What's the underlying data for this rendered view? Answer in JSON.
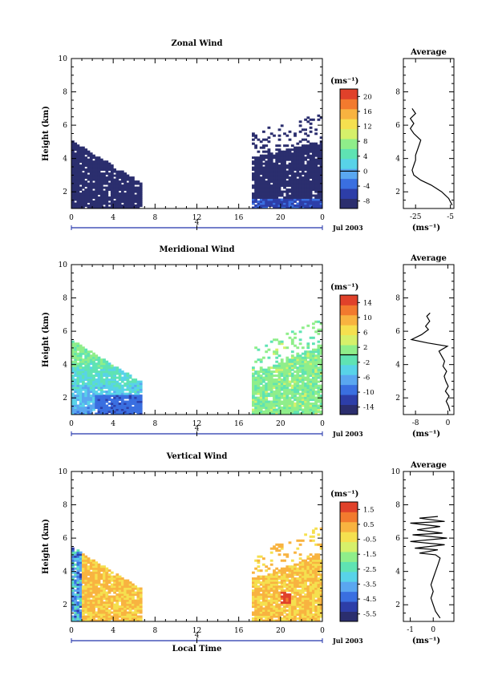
{
  "chart_data": [
    {
      "type": "heatmap",
      "title": "Zonal Wind",
      "ylabel": "Height (km)",
      "xticks": [
        "0",
        "4",
        "8",
        "12",
        "16",
        "20",
        "0"
      ],
      "yticks": [
        "2",
        "4",
        "6",
        "8",
        "10"
      ],
      "xlim": [
        0,
        24
      ],
      "ylim": [
        1,
        10
      ],
      "date_marker": "4",
      "date_label": "Jul 2003",
      "colorbar": {
        "unit": "(ms⁻¹)",
        "ticks": [
          "20",
          "16",
          "12",
          "8",
          "4",
          "0",
          "-4",
          "-8"
        ],
        "vmin": -10,
        "vmax": 22,
        "zero_line": 0
      },
      "scheme": "zonal",
      "average": {
        "title": "Average",
        "xlabel": "(ms⁻¹)",
        "xticks": [
          "-25",
          "-5"
        ],
        "xlim": [
          -32,
          -3
        ],
        "yticks": [
          "2",
          "4",
          "6",
          "8"
        ],
        "ylim": [
          1,
          10
        ],
        "profile": [
          [
            -4,
            1.2
          ],
          [
            -6,
            1.6
          ],
          [
            -10,
            2.0
          ],
          [
            -16,
            2.4
          ],
          [
            -22,
            2.7
          ],
          [
            -26,
            3.0
          ],
          [
            -27,
            3.3
          ],
          [
            -26,
            3.6
          ],
          [
            -25,
            3.9
          ],
          [
            -25,
            4.2
          ],
          [
            -24,
            4.5
          ],
          [
            -23,
            4.8
          ],
          [
            -22,
            5.1
          ],
          [
            -24,
            5.3
          ],
          [
            -26,
            5.5
          ],
          [
            -28,
            5.8
          ],
          [
            -26,
            6.1
          ],
          [
            -28,
            6.4
          ],
          [
            -25,
            6.7
          ],
          [
            -27,
            7.0
          ]
        ]
      }
    },
    {
      "type": "heatmap",
      "title": "Meridional Wind",
      "ylabel": "Height (km)",
      "xticks": [
        "0",
        "4",
        "8",
        "12",
        "16",
        "20",
        "0"
      ],
      "yticks": [
        "2",
        "4",
        "6",
        "8",
        "10"
      ],
      "xlim": [
        0,
        24
      ],
      "ylim": [
        1,
        10
      ],
      "date_marker": "4",
      "date_label": "Jul 2003",
      "colorbar": {
        "unit": "(ms⁻¹)",
        "ticks": [
          "14",
          "10",
          "6",
          "2",
          "-2",
          "-6",
          "-10",
          "-14"
        ],
        "vmin": -16,
        "vmax": 16,
        "zero_line": 0
      },
      "scheme": "meridional",
      "average": {
        "title": "Average",
        "xlabel": "(ms⁻¹)",
        "xticks": [
          "-8",
          "0"
        ],
        "xlim": [
          -11,
          1.5
        ],
        "yticks": [
          "2",
          "4",
          "6",
          "8"
        ],
        "ylim": [
          1,
          10
        ],
        "profile": [
          [
            0.5,
            1.2
          ],
          [
            0.2,
            1.5
          ],
          [
            -0.4,
            1.8
          ],
          [
            0.3,
            2.1
          ],
          [
            -0.6,
            2.4
          ],
          [
            0.1,
            2.7
          ],
          [
            -0.5,
            3.0
          ],
          [
            -0.9,
            3.3
          ],
          [
            -0.3,
            3.6
          ],
          [
            -1.2,
            3.9
          ],
          [
            -0.8,
            4.2
          ],
          [
            -1.5,
            4.5
          ],
          [
            -2.2,
            4.8
          ],
          [
            -0.1,
            5.1
          ],
          [
            -5,
            5.3
          ],
          [
            -9,
            5.5
          ],
          [
            -6.5,
            5.8
          ],
          [
            -4.8,
            6.1
          ],
          [
            -5.5,
            6.3
          ],
          [
            -4.5,
            6.6
          ],
          [
            -5.2,
            6.9
          ],
          [
            -4.4,
            7.1
          ]
        ]
      }
    },
    {
      "type": "heatmap",
      "title": "Vertical Wind",
      "ylabel": "Height (km)",
      "xlabel": "Local Time",
      "xticks": [
        "0",
        "4",
        "8",
        "12",
        "16",
        "20",
        "0"
      ],
      "yticks": [
        "2",
        "4",
        "6",
        "8",
        "10"
      ],
      "xlim": [
        0,
        24
      ],
      "ylim": [
        1,
        10
      ],
      "date_marker": "4",
      "date_label": "Jul 2003",
      "colorbar": {
        "unit": "(ms⁻¹)",
        "ticks": [
          "1.5",
          "0.5",
          "-0.5",
          "-1.5",
          "-2.5",
          "-3.5",
          "-4.5",
          "-5.5"
        ],
        "vmin": -6,
        "vmax": 2
      },
      "scheme": "vertical",
      "average": {
        "title": "Average",
        "xlabel": "(ms⁻¹)",
        "xticks": [
          "-1",
          "0"
        ],
        "xlim": [
          -1.3,
          0.9
        ],
        "yticks": [
          "2",
          "4",
          "6",
          "8",
          "10"
        ],
        "ylim": [
          1,
          10
        ],
        "profile": [
          [
            0.3,
            1.2
          ],
          [
            0.1,
            1.6
          ],
          [
            0.0,
            2.0
          ],
          [
            -0.1,
            2.4
          ],
          [
            0.0,
            2.8
          ],
          [
            -0.1,
            3.2
          ],
          [
            0.0,
            3.6
          ],
          [
            0.1,
            4.0
          ],
          [
            0.2,
            4.4
          ],
          [
            0.3,
            4.8
          ],
          [
            0.1,
            5.0
          ],
          [
            -0.6,
            5.1
          ],
          [
            0.2,
            5.3
          ],
          [
            -0.8,
            5.4
          ],
          [
            0.5,
            5.6
          ],
          [
            -1.0,
            5.8
          ],
          [
            0.6,
            6.0
          ],
          [
            -0.9,
            6.2
          ],
          [
            0.4,
            6.3
          ],
          [
            -0.7,
            6.5
          ],
          [
            0.3,
            6.7
          ],
          [
            -1.0,
            6.9
          ],
          [
            0.5,
            7.0
          ],
          [
            -0.6,
            7.2
          ],
          [
            0.2,
            7.3
          ]
        ]
      }
    }
  ]
}
